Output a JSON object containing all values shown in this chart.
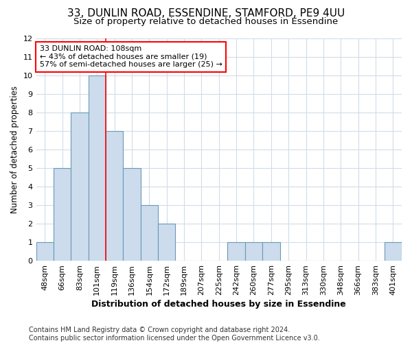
{
  "title1": "33, DUNLIN ROAD, ESSENDINE, STAMFORD, PE9 4UU",
  "title2": "Size of property relative to detached houses in Essendine",
  "xlabel": "Distribution of detached houses by size in Essendine",
  "ylabel": "Number of detached properties",
  "categories": [
    "48sqm",
    "66sqm",
    "83sqm",
    "101sqm",
    "119sqm",
    "136sqm",
    "154sqm",
    "172sqm",
    "189sqm",
    "207sqm",
    "225sqm",
    "242sqm",
    "260sqm",
    "277sqm",
    "295sqm",
    "313sqm",
    "330sqm",
    "348sqm",
    "366sqm",
    "383sqm",
    "401sqm"
  ],
  "values": [
    1,
    5,
    8,
    10,
    7,
    5,
    3,
    2,
    0,
    0,
    0,
    1,
    1,
    1,
    0,
    0,
    0,
    0,
    0,
    0,
    1
  ],
  "bar_color": "#ccdcec",
  "bar_edgecolor": "#6699bb",
  "red_line_x": 3.5,
  "annotation_line1": "33 DUNLIN ROAD: 108sqm",
  "annotation_line2": "← 43% of detached houses are smaller (19)",
  "annotation_line3": "57% of semi-detached houses are larger (25) →",
  "ylim": [
    0,
    12
  ],
  "yticks": [
    0,
    1,
    2,
    3,
    4,
    5,
    6,
    7,
    8,
    9,
    10,
    11,
    12
  ],
  "footer": "Contains HM Land Registry data © Crown copyright and database right 2024.\nContains public sector information licensed under the Open Government Licence v3.0.",
  "background_color": "#ffffff",
  "plot_background": "#ffffff",
  "grid_color": "#d0dce8",
  "title1_fontsize": 11,
  "title2_fontsize": 9.5,
  "xlabel_fontsize": 9,
  "ylabel_fontsize": 8.5,
  "tick_fontsize": 8,
  "annot_fontsize": 8,
  "footer_fontsize": 7
}
